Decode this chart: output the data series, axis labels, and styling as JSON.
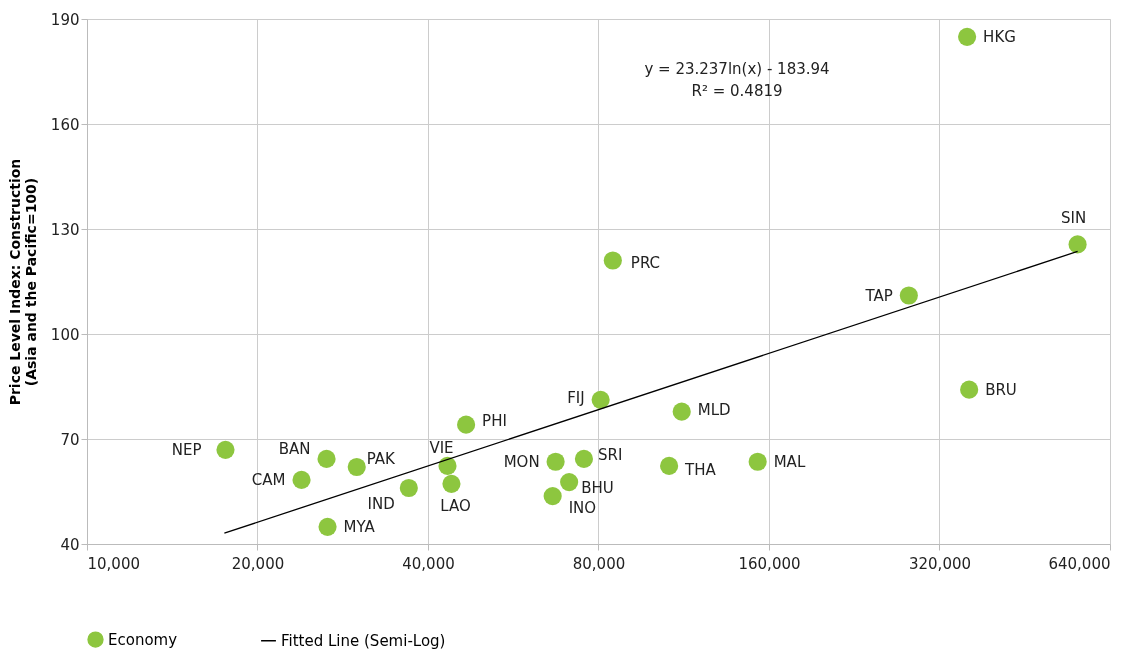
{
  "chart_data": {
    "type": "scatter",
    "ylabel": "Price Level Index: Construction\n(Asia and the Pacific=100)",
    "log": "x",
    "grid": true,
    "legend": "bottom",
    "xlim": [
      10000,
      640000
    ],
    "ylim": [
      40,
      190
    ],
    "xticks": [
      {
        "value": 10000,
        "label": "10,000"
      },
      {
        "value": 20000,
        "label": "20,000"
      },
      {
        "value": 40000,
        "label": "40,000"
      },
      {
        "value": 80000,
        "label": "80,000"
      },
      {
        "value": 160000,
        "label": "160,000"
      },
      {
        "value": 320000,
        "label": "320,000"
      },
      {
        "value": 640000,
        "label": "640,000"
      }
    ],
    "yticks": [
      40,
      70,
      100,
      130,
      160,
      190
    ],
    "series": [
      {
        "name": "Economy",
        "type": "scatter",
        "marker": "circle",
        "color": "#8dc63f",
        "x": [
          17560,
          26480,
          23920,
          29940,
          26590,
          37000,
          43300,
          44000,
          46700,
          67200,
          66400,
          75400,
          71000,
          80700,
          84800,
          106600,
          112200,
          152800,
          282500,
          358000,
          361000,
          561000
        ],
        "values": [
          66.9,
          64.3,
          58.3,
          62.0,
          44.9,
          56.0,
          62.3,
          57.2,
          74.1,
          63.5,
          53.7,
          64.3,
          57.7,
          81.2,
          121.0,
          62.3,
          77.8,
          63.5,
          111.0,
          184.9,
          84.1,
          125.6
        ]
      },
      {
        "name": "Fitted Line (Semi-Log)",
        "type": "line",
        "color": "#000000",
        "line_style": "solid",
        "marker": "none",
        "x": [
          17480,
          561000
        ],
        "values": [
          43.1,
          123.6
        ]
      }
    ],
    "annotations": [
      {
        "text": "NEP",
        "x": 17560,
        "y": 66.9
      },
      {
        "text": "BAN",
        "x": 26480,
        "y": 64.3
      },
      {
        "text": "CAM",
        "x": 23920,
        "y": 58.3
      },
      {
        "text": "PAK",
        "x": 29940,
        "y": 62.0
      },
      {
        "text": "MYA",
        "x": 26590,
        "y": 44.9
      },
      {
        "text": "IND",
        "x": 37000,
        "y": 56.0
      },
      {
        "text": "VIE",
        "x": 43300,
        "y": 62.3
      },
      {
        "text": "LAO",
        "x": 44000,
        "y": 57.2
      },
      {
        "text": "PHI",
        "x": 46700,
        "y": 74.1
      },
      {
        "text": "MON",
        "x": 67200,
        "y": 63.5
      },
      {
        "text": "INO",
        "x": 66400,
        "y": 53.7
      },
      {
        "text": "SRI",
        "x": 75400,
        "y": 64.3
      },
      {
        "text": "BHU",
        "x": 71000,
        "y": 57.7
      },
      {
        "text": "FIJ",
        "x": 80700,
        "y": 81.2
      },
      {
        "text": "PRC",
        "x": 84800,
        "y": 121.0
      },
      {
        "text": "THA",
        "x": 106600,
        "y": 62.3
      },
      {
        "text": "MLD",
        "x": 112200,
        "y": 77.8
      },
      {
        "text": "MAL",
        "x": 152800,
        "y": 63.5
      },
      {
        "text": "TAP",
        "x": 282500,
        "y": 111.0
      },
      {
        "text": "HKG",
        "x": 358000,
        "y": 184.9
      },
      {
        "text": "BRU",
        "x": 361000,
        "y": 84.1
      },
      {
        "text": "SIN",
        "x": 561000,
        "y": 125.6
      },
      "y = 23.237ln(x) - 183.94",
      "R² = 0.4819"
    ]
  }
}
